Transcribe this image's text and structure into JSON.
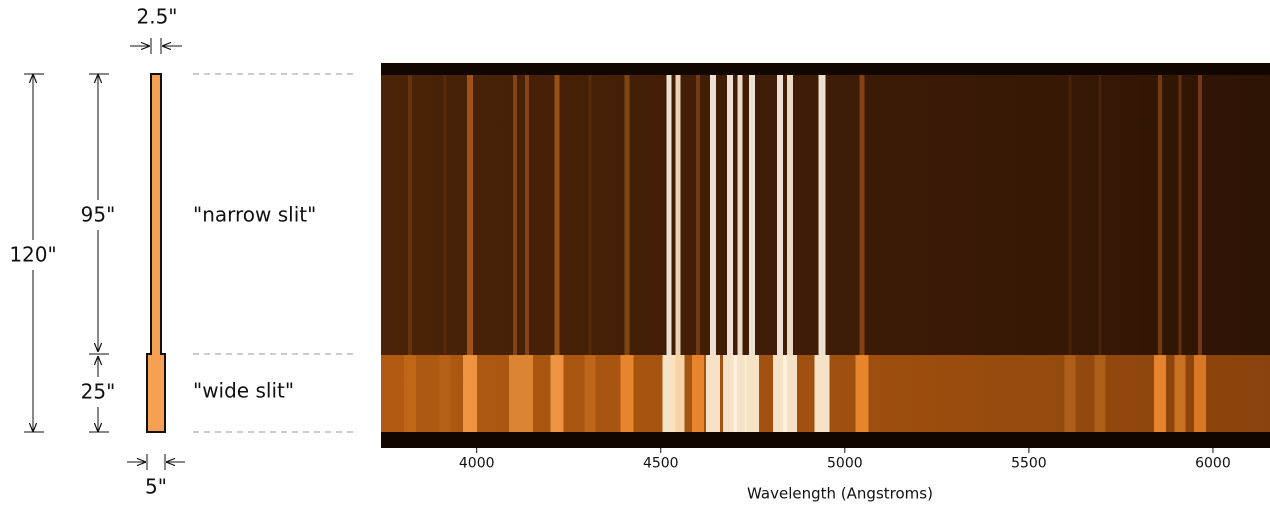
{
  "slit": {
    "top_width": "2.5\"",
    "bottom_width": "5\"",
    "total_length": "120\"",
    "narrow_length": "95\"",
    "wide_length": "25\"",
    "narrow_label": "\"narrow slit\"",
    "wide_label": "\"wide slit\""
  },
  "spectrum": {
    "xlabel": "Wavelength (Angstroms)",
    "xlim": [
      3740,
      6155
    ],
    "xticks": [
      4000,
      4500,
      5000,
      5500,
      6000
    ]
  }
}
